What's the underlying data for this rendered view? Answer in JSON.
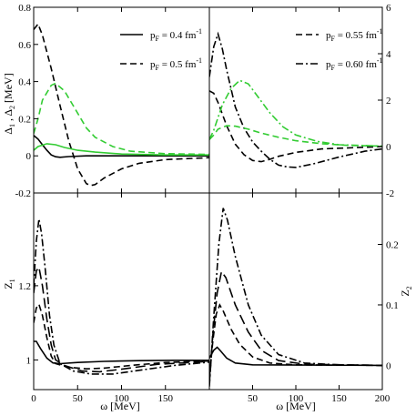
{
  "chart_data": [
    {
      "panel": "top-left",
      "type": "line",
      "ylabel_parts": [
        "Δ",
        "1",
        " , Δ",
        "2",
        "  [MeV]"
      ],
      "xlim": [
        0,
        200
      ],
      "ylim": [
        -0.2,
        0.8
      ],
      "yticks": [
        -0.2,
        0,
        0.2,
        0.4,
        0.6,
        0.8
      ],
      "ytick_labels": [
        "-0.2",
        "0",
        "0.2",
        "0.4",
        "0.6",
        "0.8"
      ],
      "xticks": [
        0,
        50,
        100,
        150
      ],
      "legend_position": "top-right",
      "legend": [
        {
          "style": "solid",
          "prefix": "p",
          "sub": "F",
          "text": " = 0.4 fm",
          "sup": "-1"
        },
        {
          "style": "dashed",
          "prefix": "p",
          "sub": "F",
          "text": " = 0.5 fm",
          "sup": "-1"
        }
      ],
      "series": [
        {
          "style": "solid",
          "color": "#000000",
          "points": [
            [
              0,
              0.11
            ],
            [
              5,
              0.09
            ],
            [
              10,
              0.06
            ],
            [
              15,
              0.03
            ],
            [
              20,
              0.005
            ],
            [
              25,
              -0.005
            ],
            [
              30,
              -0.008
            ],
            [
              40,
              -0.004
            ],
            [
              60,
              0.0
            ],
            [
              100,
              0.0
            ],
            [
              200,
              0.0
            ]
          ]
        },
        {
          "style": "dashed",
          "color": "#000000",
          "points": [
            [
              0,
              0.68
            ],
            [
              5,
              0.71
            ],
            [
              10,
              0.65
            ],
            [
              20,
              0.47
            ],
            [
              30,
              0.27
            ],
            [
              40,
              0.08
            ],
            [
              50,
              -0.07
            ],
            [
              60,
              -0.15
            ],
            [
              65,
              -0.16
            ],
            [
              70,
              -0.155
            ],
            [
              80,
              -0.12
            ],
            [
              100,
              -0.07
            ],
            [
              120,
              -0.04
            ],
            [
              150,
              -0.02
            ],
            [
              200,
              -0.01
            ]
          ]
        },
        {
          "style": "solid",
          "color": "#33cc33",
          "points": [
            [
              0,
              0.03
            ],
            [
              5,
              0.05
            ],
            [
              15,
              0.065
            ],
            [
              25,
              0.06
            ],
            [
              35,
              0.045
            ],
            [
              50,
              0.03
            ],
            [
              70,
              0.02
            ],
            [
              100,
              0.01
            ],
            [
              150,
              0.005
            ],
            [
              200,
              0.005
            ]
          ]
        },
        {
          "style": "dashed",
          "color": "#33cc33",
          "points": [
            [
              0,
              0.12
            ],
            [
              5,
              0.2
            ],
            [
              10,
              0.3
            ],
            [
              20,
              0.38
            ],
            [
              25,
              0.39
            ],
            [
              35,
              0.35
            ],
            [
              50,
              0.23
            ],
            [
              60,
              0.15
            ],
            [
              70,
              0.1
            ],
            [
              90,
              0.05
            ],
            [
              110,
              0.025
            ],
            [
              150,
              0.012
            ],
            [
              200,
              0.008
            ]
          ]
        }
      ]
    },
    {
      "panel": "top-right",
      "type": "line",
      "xlim": [
        0,
        200
      ],
      "ylim": [
        -2,
        6
      ],
      "yticks": [
        -2,
        0,
        2,
        4,
        6
      ],
      "ytick_labels": [
        "-2",
        "0",
        "2",
        "4",
        "6"
      ],
      "xticks": [
        50,
        100,
        150
      ],
      "legend_position": "top-right",
      "legend": [
        {
          "style": "dashed",
          "prefix": "p",
          "sub": "F",
          "text": " = 0.55 fm",
          "sup": "-1"
        },
        {
          "style": "dashdot",
          "prefix": "p",
          "sub": "F",
          "text": " = 0.60 fm",
          "sup": "-1"
        }
      ],
      "series": [
        {
          "style": "dashed",
          "color": "#000000",
          "points": [
            [
              0,
              2.4
            ],
            [
              5,
              2.3
            ],
            [
              10,
              1.9
            ],
            [
              20,
              0.9
            ],
            [
              30,
              0.1
            ],
            [
              40,
              -0.35
            ],
            [
              50,
              -0.6
            ],
            [
              60,
              -0.65
            ],
            [
              70,
              -0.55
            ],
            [
              80,
              -0.42
            ],
            [
              100,
              -0.25
            ],
            [
              130,
              -0.1
            ],
            [
              200,
              0.0
            ]
          ]
        },
        {
          "style": "dashdot",
          "color": "#000000",
          "points": [
            [
              0,
              3.0
            ],
            [
              5,
              4.3
            ],
            [
              10,
              4.85
            ],
            [
              15,
              4.2
            ],
            [
              20,
              3.3
            ],
            [
              30,
              1.7
            ],
            [
              40,
              0.8
            ],
            [
              50,
              0.2
            ],
            [
              60,
              -0.2
            ],
            [
              70,
              -0.55
            ],
            [
              80,
              -0.8
            ],
            [
              90,
              -0.88
            ],
            [
              100,
              -0.9
            ],
            [
              120,
              -0.75
            ],
            [
              150,
              -0.45
            ],
            [
              180,
              -0.2
            ],
            [
              200,
              -0.1
            ]
          ]
        },
        {
          "style": "dashed",
          "color": "#33cc33",
          "points": [
            [
              0,
              0.3
            ],
            [
              5,
              0.5
            ],
            [
              10,
              0.75
            ],
            [
              20,
              0.9
            ],
            [
              30,
              0.88
            ],
            [
              45,
              0.75
            ],
            [
              60,
              0.58
            ],
            [
              80,
              0.4
            ],
            [
              100,
              0.25
            ],
            [
              130,
              0.12
            ],
            [
              160,
              0.05
            ],
            [
              200,
              0.02
            ]
          ]
        },
        {
          "style": "dashdot",
          "color": "#33cc33",
          "points": [
            [
              0,
              0.3
            ],
            [
              5,
              0.7
            ],
            [
              15,
              1.8
            ],
            [
              25,
              2.5
            ],
            [
              35,
              2.85
            ],
            [
              45,
              2.7
            ],
            [
              55,
              2.2
            ],
            [
              70,
              1.45
            ],
            [
              85,
              0.85
            ],
            [
              100,
              0.5
            ],
            [
              125,
              0.22
            ],
            [
              150,
              0.08
            ],
            [
              200,
              0.02
            ]
          ]
        }
      ]
    },
    {
      "panel": "bottom-left",
      "type": "line",
      "ylabel_parts": [
        "Z",
        "1"
      ],
      "xlim": [
        0,
        200
      ],
      "ylim": [
        0.92,
        1.45
      ],
      "yticks": [
        1.0,
        1.2
      ],
      "ytick_labels": [
        "1",
        "1.2"
      ],
      "xticks": [
        0,
        50,
        100,
        150
      ],
      "xtick_labels": [
        "0",
        "50",
        "100",
        "150"
      ],
      "xlabel": "ω [MeV]",
      "series": [
        {
          "style": "solid",
          "color": "#000000",
          "points": [
            [
              0,
              1.05
            ],
            [
              3,
              1.05
            ],
            [
              8,
              1.03
            ],
            [
              15,
              1.005
            ],
            [
              22,
              0.992
            ],
            [
              30,
              0.99
            ],
            [
              50,
              0.993
            ],
            [
              80,
              0.996
            ],
            [
              120,
              0.998
            ],
            [
              160,
              0.999
            ],
            [
              200,
              0.999
            ]
          ]
        },
        {
          "style": "dashed",
          "color": "#000000",
          "points": [
            [
              0,
              1.1
            ],
            [
              3,
              1.14
            ],
            [
              6,
              1.15
            ],
            [
              10,
              1.12
            ],
            [
              15,
              1.06
            ],
            [
              20,
              1.01
            ],
            [
              25,
              0.99
            ],
            [
              40,
              0.98
            ],
            [
              60,
              0.976
            ],
            [
              80,
              0.978
            ],
            [
              110,
              0.985
            ],
            [
              150,
              0.993
            ],
            [
              200,
              0.997
            ]
          ]
        },
        {
          "style": "longdash",
          "color": "#000000",
          "points": [
            [
              0,
              1.18
            ],
            [
              3,
              1.24
            ],
            [
              6,
              1.25
            ],
            [
              10,
              1.2
            ],
            [
              15,
              1.11
            ],
            [
              20,
              1.04
            ],
            [
              25,
              1.0
            ],
            [
              35,
              0.985
            ],
            [
              55,
              0.97
            ],
            [
              75,
              0.968
            ],
            [
              100,
              0.975
            ],
            [
              140,
              0.988
            ],
            [
              200,
              0.996
            ]
          ]
        },
        {
          "style": "dashdot",
          "color": "#000000",
          "points": [
            [
              0,
              1.2
            ],
            [
              3,
              1.32
            ],
            [
              6,
              1.38
            ],
            [
              9,
              1.34
            ],
            [
              13,
              1.25
            ],
            [
              18,
              1.12
            ],
            [
              23,
              1.04
            ],
            [
              30,
              0.99
            ],
            [
              45,
              0.97
            ],
            [
              65,
              0.962
            ],
            [
              90,
              0.962
            ],
            [
              120,
              0.972
            ],
            [
              160,
              0.985
            ],
            [
              200,
              0.994
            ]
          ]
        }
      ]
    },
    {
      "panel": "bottom-right",
      "type": "line",
      "ylabel_parts": [
        "Z",
        "2"
      ],
      "xlim": [
        0,
        200
      ],
      "ylim": [
        -0.04,
        0.285
      ],
      "yticks": [
        0,
        0.1,
        0.2
      ],
      "ytick_labels": [
        "0",
        "0.1",
        "0.2"
      ],
      "xticks": [
        50,
        100,
        150,
        200
      ],
      "xtick_labels": [
        "50",
        "100",
        "150",
        "200"
      ],
      "xlabel": "ω [MeV]",
      "series": [
        {
          "style": "solid",
          "color": "#000000",
          "points": [
            [
              0,
              0.012
            ],
            [
              5,
              0.025
            ],
            [
              9,
              0.03
            ],
            [
              13,
              0.024
            ],
            [
              20,
              0.012
            ],
            [
              30,
              0.004
            ],
            [
              50,
              0.001
            ],
            [
              200,
              0.0
            ]
          ]
        },
        {
          "style": "dashed",
          "color": "#000000",
          "points": [
            [
              0,
              -0.02
            ],
            [
              4,
              0.04
            ],
            [
              8,
              0.085
            ],
            [
              12,
              0.1
            ],
            [
              16,
              0.09
            ],
            [
              25,
              0.06
            ],
            [
              35,
              0.035
            ],
            [
              50,
              0.014
            ],
            [
              70,
              0.004
            ],
            [
              100,
              0.001
            ],
            [
              200,
              0.0
            ]
          ]
        },
        {
          "style": "longdash",
          "color": "#000000",
          "points": [
            [
              0,
              -0.03
            ],
            [
              4,
              0.05
            ],
            [
              9,
              0.12
            ],
            [
              14,
              0.155
            ],
            [
              19,
              0.145
            ],
            [
              30,
              0.1
            ],
            [
              45,
              0.055
            ],
            [
              60,
              0.025
            ],
            [
              80,
              0.008
            ],
            [
              110,
              0.002
            ],
            [
              200,
              0.0
            ]
          ]
        },
        {
          "style": "dashdot",
          "color": "#000000",
          "points": [
            [
              0,
              -0.035
            ],
            [
              5,
              0.08
            ],
            [
              11,
              0.2
            ],
            [
              16,
              0.26
            ],
            [
              21,
              0.24
            ],
            [
              30,
              0.18
            ],
            [
              45,
              0.1
            ],
            [
              60,
              0.05
            ],
            [
              80,
              0.018
            ],
            [
              110,
              0.004
            ],
            [
              150,
              0.001
            ],
            [
              200,
              0.0
            ]
          ]
        }
      ]
    }
  ]
}
